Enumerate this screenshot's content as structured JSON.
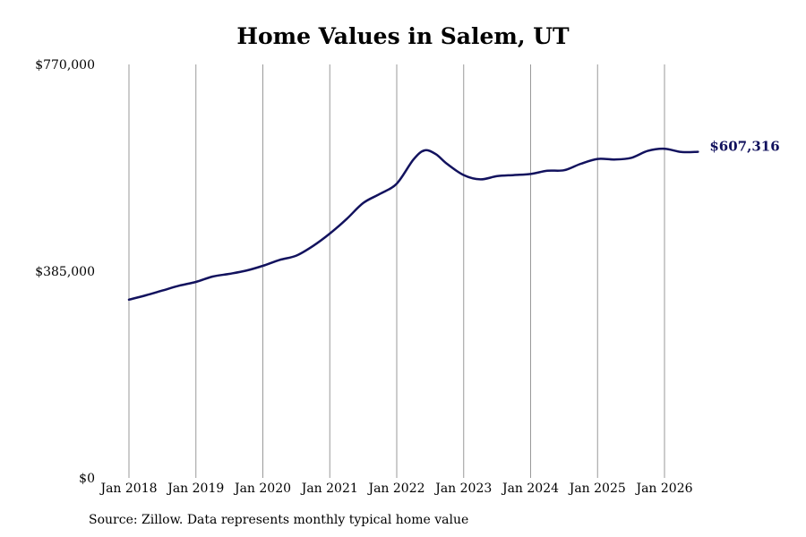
{
  "chart_data": {
    "type": "line",
    "title": "Home Values in Salem, UT",
    "xlabel": "",
    "ylabel": "",
    "ylim": [
      0,
      770000
    ],
    "y_ticks": [
      "$0",
      "$385,000",
      "$770,000"
    ],
    "y_tick_values": [
      0,
      385000,
      770000
    ],
    "x_ticks": [
      "Jan 2018",
      "Jan 2019",
      "Jan 2020",
      "Jan 2021",
      "Jan 2022",
      "Jan 2023",
      "Jan 2024",
      "Jan 2025",
      "Jan 2026"
    ],
    "x_tick_dates": [
      "2018-01",
      "2019-01",
      "2020-01",
      "2021-01",
      "2022-01",
      "2023-01",
      "2024-01",
      "2025-01",
      "2026-01"
    ],
    "grid": "vertical",
    "line_color": "#12125e",
    "series": [
      {
        "name": "",
        "x": [
          "2018-01",
          "2018-04",
          "2018-07",
          "2018-10",
          "2019-01",
          "2019-04",
          "2019-07",
          "2019-10",
          "2020-01",
          "2020-04",
          "2020-07",
          "2020-10",
          "2021-01",
          "2021-04",
          "2021-07",
          "2021-10",
          "2022-01",
          "2022-04",
          "2022-06",
          "2022-08",
          "2022-10",
          "2023-01",
          "2023-04",
          "2023-07",
          "2023-10",
          "2024-01",
          "2024-04",
          "2024-07",
          "2024-10",
          "2025-01",
          "2025-04",
          "2025-07",
          "2025-10",
          "2026-01",
          "2026-04",
          "2026-07"
        ],
        "values": [
          332000,
          340000,
          349000,
          358000,
          365000,
          375000,
          380000,
          386000,
          395000,
          406000,
          414000,
          432000,
          455000,
          482000,
          512000,
          529000,
          548000,
          593000,
          610000,
          603000,
          585000,
          564000,
          556000,
          562000,
          564000,
          566000,
          572000,
          573000,
          585000,
          594000,
          593000,
          596000,
          609000,
          613000,
          607000,
          607316
        ]
      }
    ],
    "end_label": "$607,316",
    "source": "Source: Zillow. Data represents monthly typical home value"
  }
}
